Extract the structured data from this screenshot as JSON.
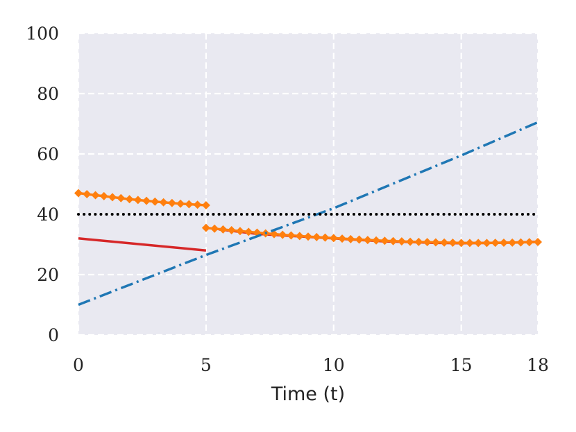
{
  "chart_data": {
    "type": "line",
    "title": "",
    "xlabel": "Time (t)",
    "ylabel": "",
    "xlim": [
      0,
      18
    ],
    "ylim": [
      0,
      100
    ],
    "x_ticks": [
      0,
      5,
      10,
      15,
      18
    ],
    "y_ticks": [
      0,
      20,
      40,
      60,
      80,
      100
    ],
    "x_tick_labels": [
      "0",
      "5",
      "10",
      "15",
      "18"
    ],
    "y_tick_labels": [
      "0",
      "20",
      "40",
      "60",
      "80",
      "100"
    ],
    "grid": true,
    "grid_style": "dashed",
    "legend": "none",
    "background": "#e9e9f1",
    "series": [
      {
        "key": "red",
        "color": "#d62728",
        "style": "solid",
        "marker": "none",
        "x": [
          0,
          5,
          5.5,
          6,
          7,
          8,
          9,
          10,
          11,
          12,
          13,
          14,
          15,
          16,
          17,
          18
        ],
        "y": [
          32,
          28,
          35,
          34.5,
          33.5,
          33,
          32.5,
          32,
          31.5,
          31,
          30.8,
          30.5,
          30.4,
          30.5,
          30.6,
          30.9
        ],
        "segments": [
          [
            0,
            1
          ],
          [
            2,
            15
          ]
        ]
      },
      {
        "key": "orange",
        "color": "#ff7f0e",
        "style": "solid",
        "marker": "diamond",
        "x": [
          0,
          1,
          2,
          3,
          4,
          5,
          5,
          6,
          7,
          8,
          9,
          10,
          11,
          12,
          13,
          14,
          15,
          16,
          17,
          18
        ],
        "y": [
          47,
          46,
          45,
          44.2,
          43.5,
          43,
          35.5,
          34.7,
          33.9,
          33.2,
          32.6,
          32.1,
          31.6,
          31.2,
          30.9,
          30.7,
          30.5,
          30.5,
          30.6,
          30.8
        ],
        "segments": [
          [
            0,
            5
          ],
          [
            6,
            19
          ]
        ]
      },
      {
        "key": "blue",
        "color": "#1f77b4",
        "style": "dashdot",
        "marker": "none",
        "x": [
          0,
          5,
          10,
          15,
          18
        ],
        "y": [
          10,
          26.5,
          42,
          59.5,
          70.5
        ],
        "segments": [
          [
            0,
            4
          ]
        ]
      },
      {
        "key": "black",
        "color": "#000000",
        "style": "dotted",
        "marker": "none",
        "x": [
          0,
          18
        ],
        "y": [
          40,
          40
        ],
        "segments": [
          [
            0,
            1
          ]
        ]
      }
    ]
  }
}
